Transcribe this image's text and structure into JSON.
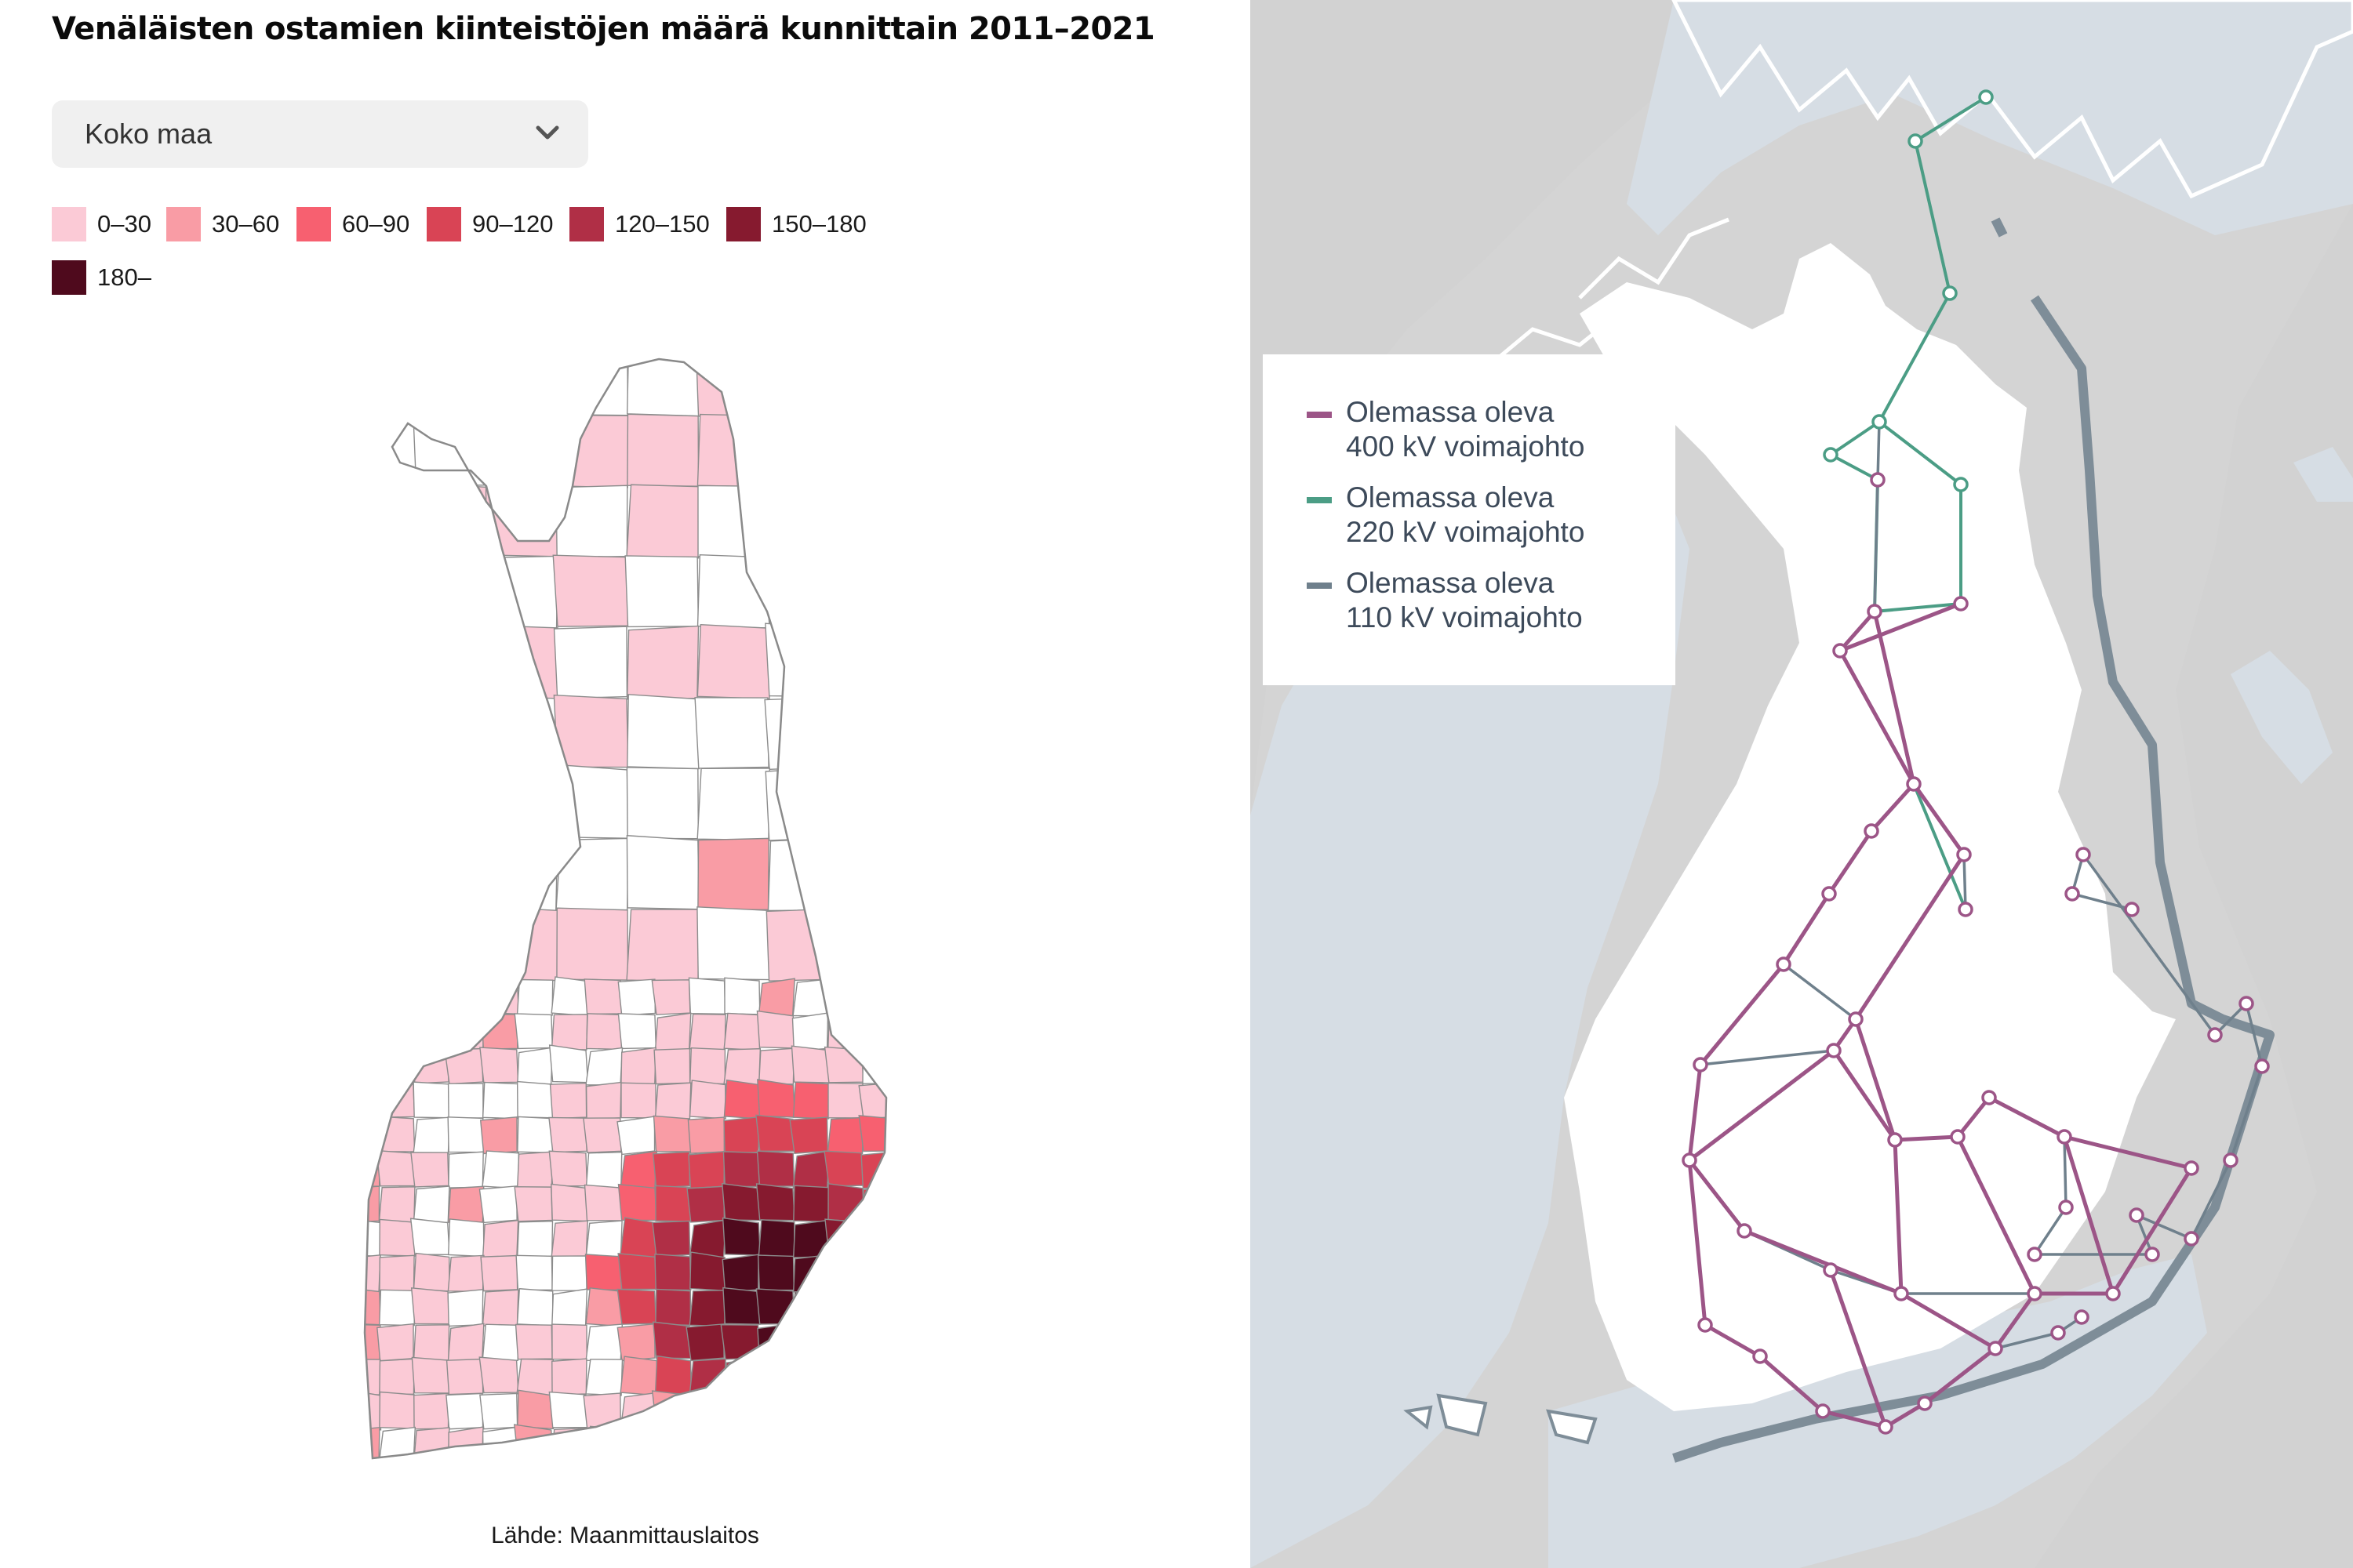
{
  "title": "Venäläisten ostamien kiinteistöjen määrä kunnittain 2011–2021",
  "dropdown": {
    "selected": "Koko maa",
    "icon": "chevron-down-icon"
  },
  "legend": {
    "items": [
      {
        "label": "0–30",
        "color": "#fbcad6"
      },
      {
        "label": "30–60",
        "color": "#f99ca5"
      },
      {
        "label": "60–90",
        "color": "#f76070"
      },
      {
        "label": "90–120",
        "color": "#d94455"
      },
      {
        "label": "120–150",
        "color": "#b02f46"
      },
      {
        "label": "150–180",
        "color": "#861a2f"
      },
      {
        "label": "180–",
        "color": "#4f0a1d"
      }
    ]
  },
  "source": "Lähde: Maanmittauslaitos",
  "grid_legend": {
    "items": [
      {
        "line1": "Olemassa oleva",
        "line2": "400 kV voimajohto",
        "color": "#9c5587"
      },
      {
        "line1": "Olemassa oleva",
        "line2": "220 kV voimajohto",
        "color": "#4b9d85"
      },
      {
        "line1": "Olemassa oleva",
        "line2": "110 kV voimajohto",
        "color": "#6f808c"
      }
    ]
  },
  "colors": {
    "map_land": "#ffffff",
    "map_sea": "#d4d4d4",
    "coast_shadow": "#7e8d98"
  }
}
